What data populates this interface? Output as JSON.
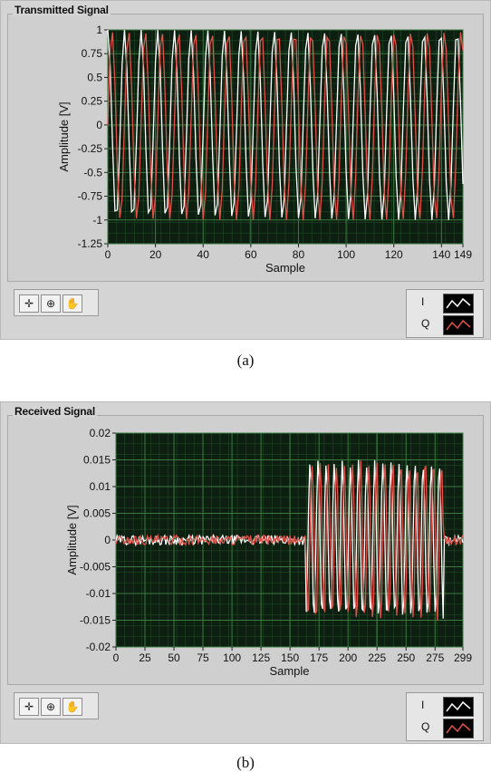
{
  "charts": [
    {
      "panel_title": "Transmitted Signal",
      "caption": "(a)",
      "legend": [
        {
          "name": "I",
          "color": "#ffffff"
        },
        {
          "name": "Q",
          "color": "#e0524a"
        }
      ],
      "toolbar": [
        "cursor-move-icon",
        "zoom-icon",
        "pan-hand-icon"
      ]
    },
    {
      "panel_title": "Received Signal",
      "caption": "(b)",
      "legend": [
        {
          "name": "I",
          "color": "#ffffff"
        },
        {
          "name": "Q",
          "color": "#e0524a"
        }
      ],
      "toolbar": [
        "cursor-move-icon",
        "zoom-icon",
        "pan-hand-icon"
      ]
    }
  ],
  "chart_data": [
    {
      "type": "line",
      "title": "Transmitted Signal",
      "xlabel": "Sample",
      "ylabel": "Amplitude [V]",
      "xlim": [
        0,
        149
      ],
      "ylim": [
        -1.25,
        1
      ],
      "xticks": [
        0,
        20,
        40,
        60,
        80,
        100,
        120,
        140,
        149
      ],
      "yticks": [
        1,
        0.75,
        0.5,
        0.25,
        0,
        -0.25,
        -0.5,
        -0.75,
        -1,
        -1.25
      ],
      "ytick_labels": [
        "1",
        "0.75",
        "0.5",
        "0.25",
        "0",
        "-0.25",
        "-0.5",
        "-0.75",
        "-1",
        "-1.25"
      ],
      "grid": true,
      "background": "#0d1f10",
      "signal": {
        "samples": 150,
        "cycles": 21.5,
        "amplitude": 1,
        "noise": 0,
        "start": 0,
        "end": 149
      },
      "series": [
        {
          "name": "I",
          "color": "#ffffff",
          "phase": 0
        },
        {
          "name": "Q",
          "color": "#e0524a",
          "phase": -1.5708
        }
      ]
    },
    {
      "type": "line",
      "title": "Received Signal",
      "xlabel": "Sample",
      "ylabel": "Amplitude [V]",
      "xlim": [
        0,
        299
      ],
      "ylim": [
        -0.02,
        0.02
      ],
      "xticks": [
        0,
        25,
        50,
        75,
        100,
        125,
        150,
        175,
        200,
        225,
        250,
        275,
        299
      ],
      "yticks": [
        0.02,
        0.015,
        0.01,
        0.005,
        0,
        -0.005,
        -0.01,
        -0.015,
        -0.02
      ],
      "ytick_labels": [
        "0.02",
        "0.015",
        "0.01",
        "0.005",
        "0",
        "-0.005",
        "-0.01",
        "-0.015",
        "-0.02"
      ],
      "grid": true,
      "background": "#0d1f10",
      "signal": {
        "samples": 300,
        "cycles_per_sample": 0.1435,
        "amplitude": 0.0142,
        "noise": 0.0009,
        "start": 164,
        "end": 282
      },
      "series": [
        {
          "name": "I",
          "color": "#ffffff",
          "phase": 0
        },
        {
          "name": "Q",
          "color": "#e0524a",
          "phase": -1.5708
        }
      ]
    }
  ]
}
